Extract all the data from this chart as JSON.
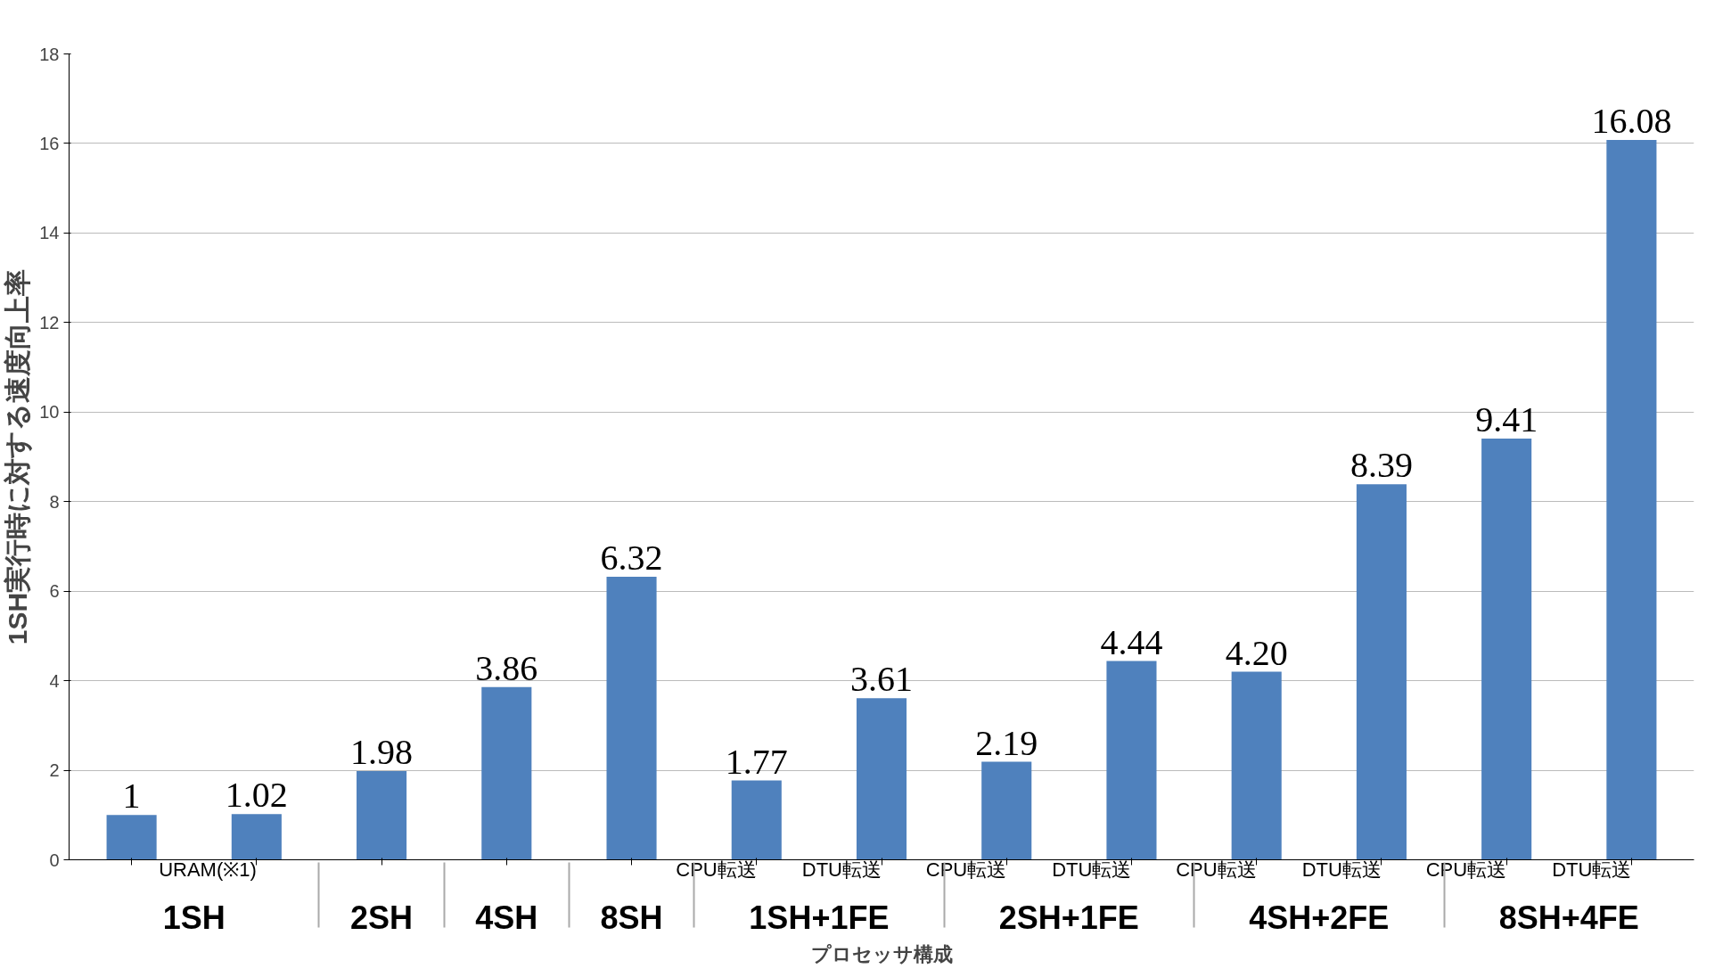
{
  "chart_data": {
    "type": "bar",
    "ylabel": "1SH実行時に対する速度向上率",
    "xlabel": "プロセッサ構成",
    "categories": [
      null,
      "URAM(※1)",
      null,
      null,
      null,
      "CPU転送",
      "DTU転送",
      "CPU転送",
      "DTU転送",
      "CPU転送",
      "DTU転送",
      "CPU転送",
      "DTU転送"
    ],
    "annotations": [
      "1SH",
      "2SH",
      "4SH",
      "8SH",
      "1SH+1FE",
      "2SH+1FE",
      "4SH+2FE",
      "8SH+4FE"
    ],
    "values": [
      1,
      1.02,
      1.98,
      3.86,
      6.32,
      1.77,
      3.61,
      2.19,
      4.44,
      4.2,
      8.39,
      9.41,
      16.08
    ],
    "value_labels": [
      "1",
      "1.02",
      "1.98",
      "3.86",
      "6.32",
      "1.77",
      "3.61",
      "2.19",
      "4.44",
      "4.20",
      "8.39",
      "9.41",
      "16.08"
    ],
    "color": "#4f81bd",
    "ylim": [
      0,
      18
    ],
    "yticks": [
      0,
      2,
      4,
      6,
      8,
      10,
      12,
      14,
      16,
      18
    ],
    "grid": "y"
  }
}
